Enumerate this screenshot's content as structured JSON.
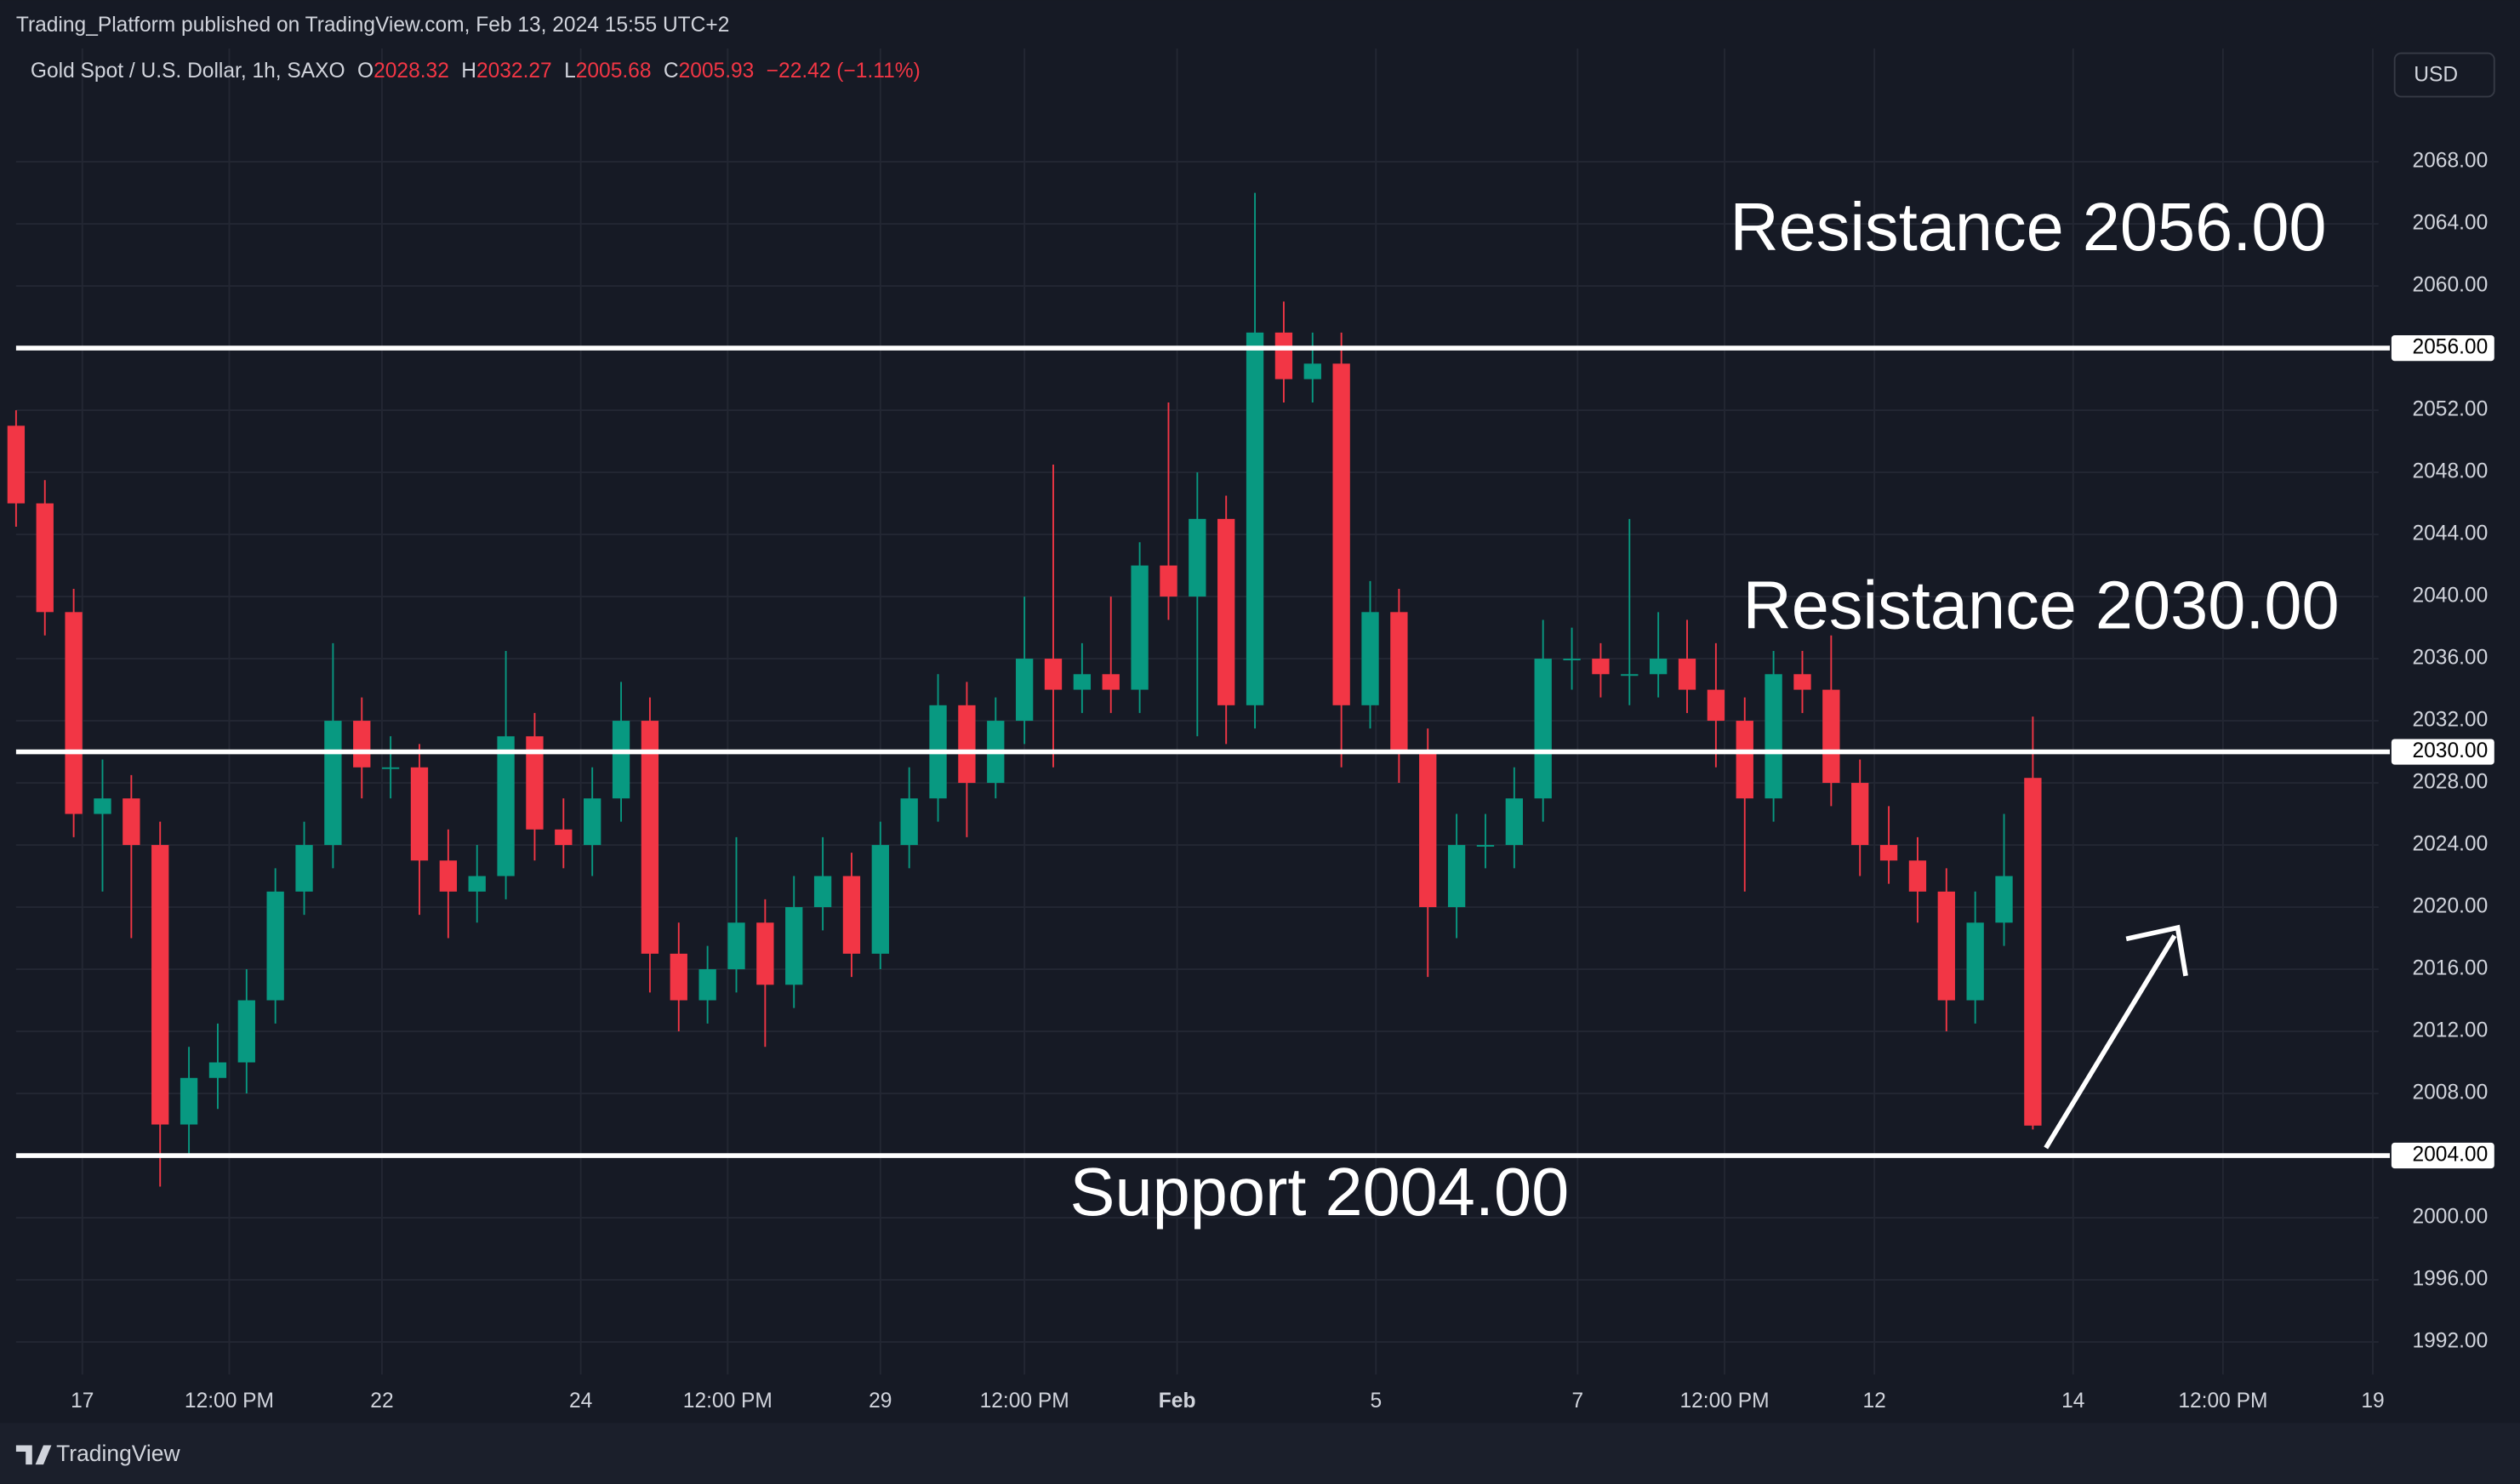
{
  "header": {
    "published": "Trading_Platform published on TradingView.com, Feb 13, 2024 15:55 UTC+2",
    "footer": "TradingView"
  },
  "chart_data": {
    "type": "candlestick",
    "title": "Gold Spot / U.S. Dollar, 1h, SAXO",
    "ohlc_labels": [
      "O",
      "H",
      "L",
      "C"
    ],
    "change": "−22.42 (−1.11%)",
    "currency": "USD",
    "up_color": "#089981",
    "down_color": "#f23645",
    "open": [
      2051,
      2046,
      2039,
      2026,
      2027,
      2024,
      2006,
      2009,
      2010,
      2014,
      2021,
      2024,
      2032,
      2029,
      2029,
      2023,
      2021,
      2022,
      2031,
      2025,
      2024,
      2027,
      2032,
      2017,
      2014,
      2016,
      2019,
      2015,
      2020,
      2022,
      2017,
      2024,
      2027,
      2033,
      2028,
      2032,
      2036,
      2034,
      2035,
      2034,
      2042,
      2040,
      2045,
      2033,
      2057,
      2054,
      2055,
      2033,
      2039,
      2030,
      2020,
      2024,
      2024,
      2027,
      2036,
      2036,
      2035,
      2035,
      2036,
      2034,
      2032,
      2027,
      2035,
      2034,
      2028,
      2024,
      2023,
      2021,
      2014,
      2019,
      2028.32
    ],
    "high": [
      2052,
      2047.5,
      2040.5,
      2029.5,
      2028.5,
      2025.5,
      2011,
      2012.5,
      2016,
      2022.5,
      2025.5,
      2037,
      2033.5,
      2031,
      2030.5,
      2025,
      2024,
      2036.5,
      2032.5,
      2027,
      2029,
      2034.5,
      2033.5,
      2019,
      2017.5,
      2024.5,
      2020.5,
      2022,
      2024.5,
      2023.5,
      2025.5,
      2029,
      2035,
      2034.5,
      2033.5,
      2040,
      2048.5,
      2037,
      2040,
      2043.5,
      2052.5,
      2048,
      2046.5,
      2066,
      2059,
      2057,
      2057,
      2041,
      2040.5,
      2031.5,
      2026,
      2026,
      2029,
      2038.5,
      2038,
      2037,
      2045,
      2039,
      2038.5,
      2037,
      2033.5,
      2036.5,
      2036.5,
      2037.5,
      2029.5,
      2026.5,
      2024.5,
      2022.5,
      2021,
      2026,
      2032.27
    ],
    "low": [
      2044.5,
      2037.5,
      2024.5,
      2021,
      2018,
      2002,
      2004,
      2007,
      2008,
      2012.5,
      2019.5,
      2022.5,
      2027,
      2027,
      2019.5,
      2018,
      2019,
      2020.5,
      2023,
      2022.5,
      2022,
      2025.5,
      2014.5,
      2012,
      2012.5,
      2014.5,
      2011,
      2013.5,
      2018.5,
      2015.5,
      2016,
      2022.5,
      2025.5,
      2024.5,
      2027,
      2030.5,
      2029,
      2032.5,
      2032.5,
      2032.5,
      2038.5,
      2031,
      2030.5,
      2031.5,
      2052.5,
      2052.5,
      2029,
      2031.5,
      2028,
      2015.5,
      2018,
      2022.5,
      2022.5,
      2025.5,
      2034,
      2033.5,
      2033,
      2033.5,
      2032.5,
      2029,
      2021,
      2025.5,
      2032.5,
      2026.5,
      2022,
      2021.5,
      2019,
      2012,
      2012.5,
      2017.5,
      2005.68
    ],
    "close": [
      2046,
      2039,
      2026,
      2027,
      2024,
      2006,
      2009,
      2010,
      2014,
      2021,
      2024,
      2032,
      2029,
      2029,
      2023,
      2021,
      2022,
      2031,
      2025,
      2024,
      2027,
      2032,
      2017,
      2014,
      2016,
      2019,
      2015,
      2020,
      2022,
      2017,
      2024,
      2027,
      2033,
      2028,
      2032,
      2036,
      2034,
      2035,
      2034,
      2042,
      2040,
      2045,
      2033,
      2057,
      2054,
      2055,
      2033,
      2039,
      2030,
      2020,
      2024,
      2024,
      2027,
      2036,
      2036,
      2035,
      2035,
      2036,
      2034,
      2032,
      2027,
      2035,
      2034,
      2028,
      2024,
      2023,
      2021,
      2014,
      2019,
      2022,
      2005.93
    ],
    "xlim": [
      0,
      82
    ],
    "xticks": [
      {
        "value": 2.3,
        "label": "17"
      },
      {
        "value": 7.4,
        "label": "12:00 PM"
      },
      {
        "value": 12.7,
        "label": "22"
      },
      {
        "value": 19.6,
        "label": "24"
      },
      {
        "value": 24.7,
        "label": "12:00 PM"
      },
      {
        "value": 30,
        "label": "29"
      },
      {
        "value": 35,
        "label": "12:00 PM"
      },
      {
        "value": 40.3,
        "label": "Feb"
      },
      {
        "value": 47.2,
        "label": "5"
      },
      {
        "value": 54.2,
        "label": "7"
      },
      {
        "value": 59.3,
        "label": "12:00 PM"
      },
      {
        "value": 64.5,
        "label": "12"
      },
      {
        "value": 71.4,
        "label": "14"
      },
      {
        "value": 76.6,
        "label": "12:00 PM"
      },
      {
        "value": 81.8,
        "label": "19"
      }
    ],
    "ylim": [
      1989.9,
      2075.3
    ],
    "yticks": [
      {
        "value": 1992,
        "label": "1992.00"
      },
      {
        "value": 1996,
        "label": "1996.00"
      },
      {
        "value": 2000,
        "label": "2000.00"
      },
      {
        "value": 2008,
        "label": "2008.00"
      },
      {
        "value": 2012,
        "label": "2012.00"
      },
      {
        "value": 2016,
        "label": "2016.00"
      },
      {
        "value": 2020,
        "label": "2020.00"
      },
      {
        "value": 2024,
        "label": "2024.00"
      },
      {
        "value": 2028,
        "label": "2028.00"
      },
      {
        "value": 2032,
        "label": "2032.00"
      },
      {
        "value": 2036,
        "label": "2036.00"
      },
      {
        "value": 2040,
        "label": "2040.00"
      },
      {
        "value": 2044,
        "label": "2044.00"
      },
      {
        "value": 2048,
        "label": "2048.00"
      },
      {
        "value": 2052,
        "label": "2052.00"
      },
      {
        "value": 2060,
        "label": "2060.00"
      },
      {
        "value": 2064,
        "label": "2064.00"
      },
      {
        "value": 2068,
        "label": "2068.00"
      }
    ],
    "grid": true,
    "levels": [
      {
        "value": 2056,
        "axis_label": "2056.00",
        "label": "Resistance 2056.00"
      },
      {
        "value": 2030,
        "axis_label": "2030.00",
        "label": "Resistance 2030.00"
      },
      {
        "value": 2004,
        "axis_label": "2004.00",
        "label": "Support 2004.00"
      }
    ]
  }
}
